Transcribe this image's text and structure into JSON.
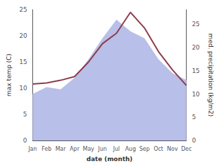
{
  "chart_data": {
    "type": "line",
    "categories": [
      "Jan",
      "Feb",
      "Mar",
      "Apr",
      "May",
      "Jun",
      "Jul",
      "Aug",
      "Sep",
      "Oct",
      "Nov",
      "Dec"
    ],
    "xlabel": "date (month)",
    "ylabel": "max temp (C)",
    "y2label": "med. precipitation (kg/m2)",
    "series": [
      {
        "type": "area",
        "axis": "y2",
        "color": "#b8bfe8",
        "values": [
          10.0,
          11.5,
          11.0,
          13.5,
          17.5,
          22.0,
          26.0,
          23.5,
          22.0,
          17.5,
          14.5,
          13.0
        ]
      },
      {
        "type": "line",
        "color": "#8B3A4A",
        "values": [
          10.8,
          11.0,
          11.5,
          12.2,
          15.0,
          18.5,
          20.5,
          24.5,
          21.5,
          17.0,
          13.5,
          10.5
        ]
      }
    ],
    "ylim": [
      0,
      25
    ],
    "yticks": [
      0,
      5,
      10,
      15,
      20,
      25
    ],
    "y2lim": [
      0,
      28.15
    ],
    "y2ticks": [
      0,
      5,
      10,
      15,
      20,
      25
    ],
    "grid": false
  }
}
